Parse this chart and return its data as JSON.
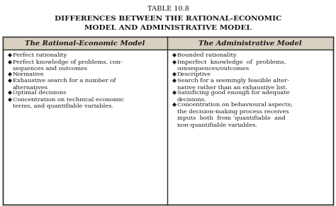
{
  "title_line1": "TABLE 10.8",
  "title_line2": "DIFFERENCES BETWEEN THE RATIONAL-ECONOMIC",
  "title_line3": "MODEL AND ADMINISTRATIVE MODEL",
  "col1_header": "The Rational-Economic Model",
  "col2_header": "The Administrative Model",
  "col1_items": [
    "Perfect rationality",
    "Perfect knowledge of problems, con-\nsequences and outcomes",
    "Normative",
    "Exhaustive search for a number of\nalternatives",
    "Optimal decisions",
    "Concentration on technical economic\nterms, and quantifiable variables."
  ],
  "col2_items": [
    "Bounded rationality",
    "Imperfect  knowledge  of  problems,\nconsequences/outcomes",
    "Descriptive",
    "Search for a seemingly feasible alter-\nnative rather than an exhaustive list.",
    "Satisficing good enough for adequate\ndecisions.",
    "Concentration on behavioural aspects;\nthe decision-making process receives\ninputs  both  from ‘quantifiable  and\nnon-quantifiable variables."
  ],
  "bg_color": "#ffffff",
  "text_color": "#1a1a1a",
  "border_color": "#2a2a2a",
  "header_bg": "#d8d0c0",
  "title_fs": 7.0,
  "title_bold_fs": 7.5,
  "header_fs": 7.2,
  "content_fs": 6.0,
  "bullet": "◆"
}
